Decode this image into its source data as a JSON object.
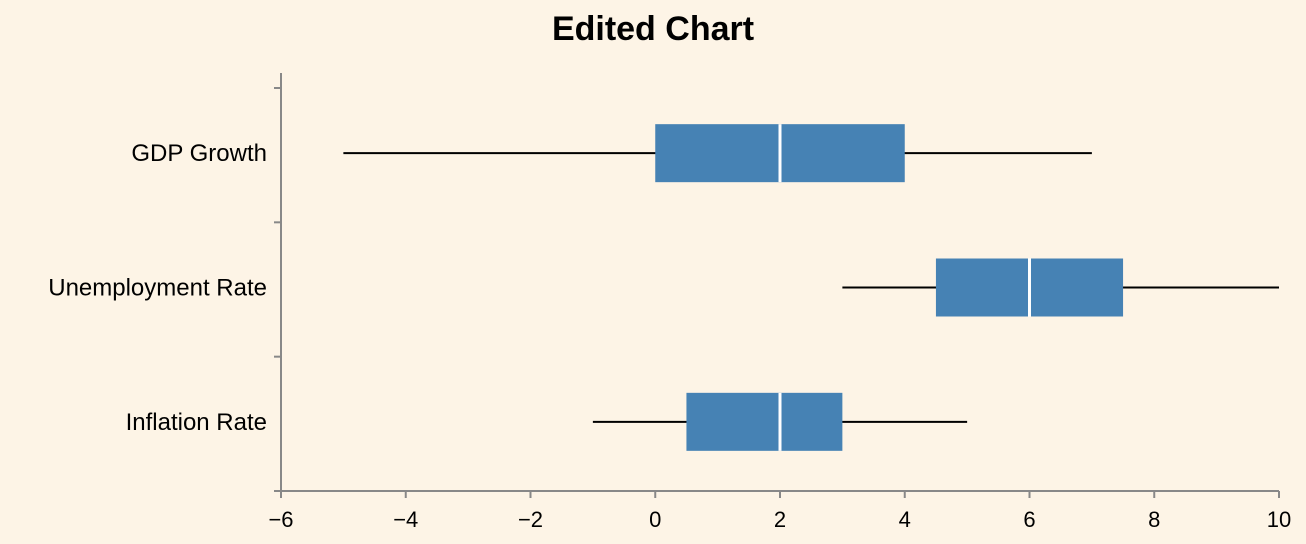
{
  "chart_data": {
    "type": "boxplot",
    "title": "Edited Chart",
    "xlabel": "",
    "ylabel": "",
    "xlim": [
      -6,
      10
    ],
    "x_ticks": [
      "−6",
      "−4",
      "−2",
      "0",
      "2",
      "4",
      "6",
      "8",
      "10"
    ],
    "x_tick_values": [
      -6,
      -4,
      -2,
      0,
      2,
      4,
      6,
      8,
      10
    ],
    "grid": false,
    "orientation": "horizontal",
    "box_color": "#4682b4",
    "median_color": "#ffffff",
    "whisker_color": "#000000",
    "background": "#fdf4e6",
    "categories": [
      "GDP Growth",
      "Unemployment Rate",
      "Inflation Rate"
    ],
    "boxes": [
      {
        "category": "GDP Growth",
        "min": -5,
        "q1": 0,
        "median": 2,
        "q3": 4,
        "max": 7
      },
      {
        "category": "Unemployment Rate",
        "min": 3,
        "q1": 4.5,
        "median": 6,
        "q3": 7.5,
        "max": 10
      },
      {
        "category": "Inflation Rate",
        "min": -1,
        "q1": 0.5,
        "median": 2,
        "q3": 3,
        "max": 5
      }
    ]
  }
}
